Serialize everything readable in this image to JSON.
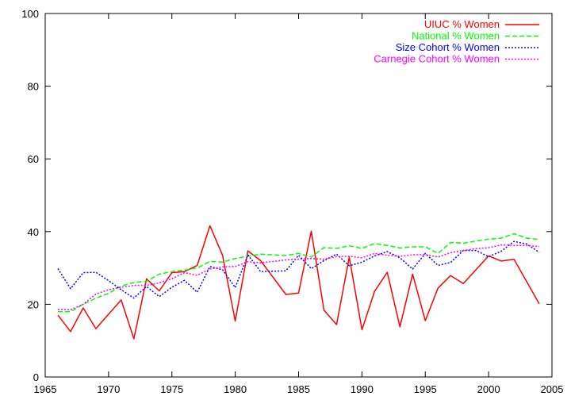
{
  "chart_data": {
    "type": "line",
    "title": "",
    "xlabel": "",
    "ylabel": "",
    "xlim": [
      1965,
      2005
    ],
    "ylim": [
      0,
      100
    ],
    "xticks": [
      1965,
      1970,
      1975,
      1980,
      1985,
      1990,
      1995,
      2000,
      2005
    ],
    "yticks": [
      0,
      20,
      40,
      60,
      80,
      100
    ],
    "grid": false,
    "legend_position": "top-right",
    "series": [
      {
        "name": "UIUC % Women",
        "color": "#ff0000",
        "dash": "solid",
        "points": [
          [
            1966,
            17
          ],
          [
            1967,
            12.5
          ],
          [
            1968,
            19
          ],
          [
            1969,
            13.3
          ],
          [
            1971,
            21.2
          ],
          [
            1972,
            10.5
          ],
          [
            1973,
            27
          ],
          [
            1974,
            23.7
          ],
          [
            1975,
            28.7
          ],
          [
            1976,
            29
          ],
          [
            1977,
            30.7
          ],
          [
            1978,
            41.6
          ],
          [
            1979,
            33.5
          ],
          [
            1980,
            15.4
          ],
          [
            1981,
            34.7
          ],
          [
            1982,
            32
          ],
          [
            1984,
            22.7
          ],
          [
            1985,
            23.1
          ],
          [
            1986,
            40.1
          ],
          [
            1987,
            18.4
          ],
          [
            1988,
            14.4
          ],
          [
            1989,
            33
          ],
          [
            1990,
            13
          ],
          [
            1991,
            23.6
          ],
          [
            1992,
            28.8
          ],
          [
            1993,
            13.8
          ],
          [
            1994,
            28.3
          ],
          [
            1995,
            15.5
          ],
          [
            1996,
            24.4
          ],
          [
            1997,
            27.9
          ],
          [
            1998,
            25.7
          ],
          [
            2000,
            33.3
          ],
          [
            2001,
            31.9
          ],
          [
            2002,
            32.4
          ],
          [
            2004,
            20.1
          ]
        ]
      },
      {
        "name": "National % Women",
        "color": "#00ff00",
        "dash": "dashed",
        "points": [
          [
            1966,
            18
          ],
          [
            1967,
            18
          ],
          [
            1968,
            20
          ],
          [
            1969,
            21.7
          ],
          [
            1970,
            23
          ],
          [
            1971,
            25
          ],
          [
            1972,
            26
          ],
          [
            1973,
            26.3
          ],
          [
            1974,
            28.3
          ],
          [
            1975,
            29
          ],
          [
            1976,
            29.4
          ],
          [
            1977,
            30
          ],
          [
            1978,
            31.8
          ],
          [
            1979,
            31.6
          ],
          [
            1980,
            32.6
          ],
          [
            1981,
            33.2
          ],
          [
            1982,
            33.8
          ],
          [
            1983,
            33.6
          ],
          [
            1984,
            33.4
          ],
          [
            1985,
            34
          ],
          [
            1986,
            33
          ],
          [
            1987,
            35.6
          ],
          [
            1988,
            35.4
          ],
          [
            1989,
            36.1
          ],
          [
            1990,
            35.4
          ],
          [
            1991,
            36.7
          ],
          [
            1992,
            36.2
          ],
          [
            1993,
            35.5
          ],
          [
            1994,
            35.8
          ],
          [
            1995,
            35.8
          ],
          [
            1996,
            34
          ],
          [
            1997,
            37
          ],
          [
            1998,
            36.8
          ],
          [
            1999,
            37.4
          ],
          [
            2000,
            37.9
          ],
          [
            2001,
            38.2
          ],
          [
            2002,
            39.4
          ],
          [
            2003,
            38.2
          ],
          [
            2004,
            37.8
          ]
        ]
      },
      {
        "name": "Size Cohort % Women",
        "color": "#0000ff",
        "dash": "dotted",
        "points": [
          [
            1966,
            29.8
          ],
          [
            1967,
            24.3
          ],
          [
            1968,
            28.7
          ],
          [
            1969,
            28.8
          ],
          [
            1970,
            26.5
          ],
          [
            1971,
            24
          ],
          [
            1972,
            21.7
          ],
          [
            1973,
            24.9
          ],
          [
            1974,
            22.1
          ],
          [
            1975,
            24.7
          ],
          [
            1976,
            26.6
          ],
          [
            1977,
            23.3
          ],
          [
            1978,
            30.4
          ],
          [
            1979,
            29.5
          ],
          [
            1980,
            24.6
          ],
          [
            1981,
            33.6
          ],
          [
            1982,
            29
          ],
          [
            1983,
            29.1
          ],
          [
            1984,
            29.2
          ],
          [
            1985,
            33.5
          ],
          [
            1986,
            29.8
          ],
          [
            1987,
            32
          ],
          [
            1988,
            33.8
          ],
          [
            1989,
            30.6
          ],
          [
            1990,
            31.6
          ],
          [
            1991,
            33.3
          ],
          [
            1992,
            34.5
          ],
          [
            1993,
            32.8
          ],
          [
            1994,
            29.7
          ],
          [
            1995,
            34
          ],
          [
            1996,
            30.7
          ],
          [
            1997,
            31.5
          ],
          [
            1998,
            34.8
          ],
          [
            1999,
            34.8
          ],
          [
            2000,
            33.1
          ],
          [
            2001,
            34.6
          ],
          [
            2002,
            37.3
          ],
          [
            2003,
            36.6
          ],
          [
            2004,
            34.3
          ]
        ]
      },
      {
        "name": "Carnegie Cohort % Women",
        "color": "#ff00ff",
        "dash": "dotted",
        "points": [
          [
            1966,
            18.6
          ],
          [
            1967,
            18.5
          ],
          [
            1968,
            20
          ],
          [
            1969,
            22.8
          ],
          [
            1970,
            24
          ],
          [
            1971,
            24.7
          ],
          [
            1972,
            25.2
          ],
          [
            1973,
            25.2
          ],
          [
            1974,
            25.9
          ],
          [
            1975,
            27
          ],
          [
            1976,
            28.7
          ],
          [
            1977,
            28
          ],
          [
            1978,
            29.7
          ],
          [
            1979,
            30.3
          ],
          [
            1980,
            30.4
          ],
          [
            1981,
            31.7
          ],
          [
            1982,
            31.4
          ],
          [
            1983,
            31.8
          ],
          [
            1984,
            32.2
          ],
          [
            1985,
            32.4
          ],
          [
            1986,
            32.6
          ],
          [
            1987,
            32.4
          ],
          [
            1988,
            33.1
          ],
          [
            1989,
            33.2
          ],
          [
            1990,
            32.8
          ],
          [
            1991,
            34
          ],
          [
            1992,
            33.5
          ],
          [
            1993,
            33.2
          ],
          [
            1994,
            33.6
          ],
          [
            1995,
            33.7
          ],
          [
            1996,
            33
          ],
          [
            1997,
            34.2
          ],
          [
            1998,
            34.8
          ],
          [
            1999,
            35.3
          ],
          [
            2000,
            35.6
          ],
          [
            2001,
            36.3
          ],
          [
            2002,
            36.2
          ],
          [
            2003,
            36.2
          ],
          [
            2004,
            35.9
          ]
        ]
      }
    ]
  }
}
